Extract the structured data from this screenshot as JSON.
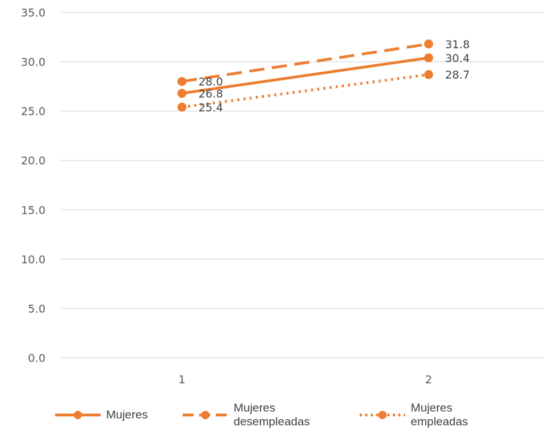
{
  "chart_data": {
    "type": "line",
    "title": "",
    "xlabel": "",
    "ylabel": "",
    "categories": [
      "1",
      "2"
    ],
    "ylim": [
      0,
      35
    ],
    "yticks": [
      "0.0",
      "5.0",
      "10.0",
      "15.0",
      "20.0",
      "25.0",
      "30.0",
      "35.0"
    ],
    "grid": true,
    "legend_position": "bottom",
    "series": [
      {
        "name": "Mujeres",
        "values": [
          26.8,
          30.4
        ],
        "labels": [
          "26.8",
          "30.4"
        ],
        "style": "solid",
        "color": "#ED7D31"
      },
      {
        "name": "Mujeres desempleadas",
        "values": [
          28.0,
          31.8
        ],
        "labels": [
          "28.0",
          "31.8"
        ],
        "style": "dashed",
        "color": "#ED7D31"
      },
      {
        "name": "Mujeres empleadas",
        "values": [
          25.4,
          28.7
        ],
        "labels": [
          "25.4",
          "28.7"
        ],
        "style": "dotted",
        "color": "#ED7D31"
      }
    ]
  }
}
